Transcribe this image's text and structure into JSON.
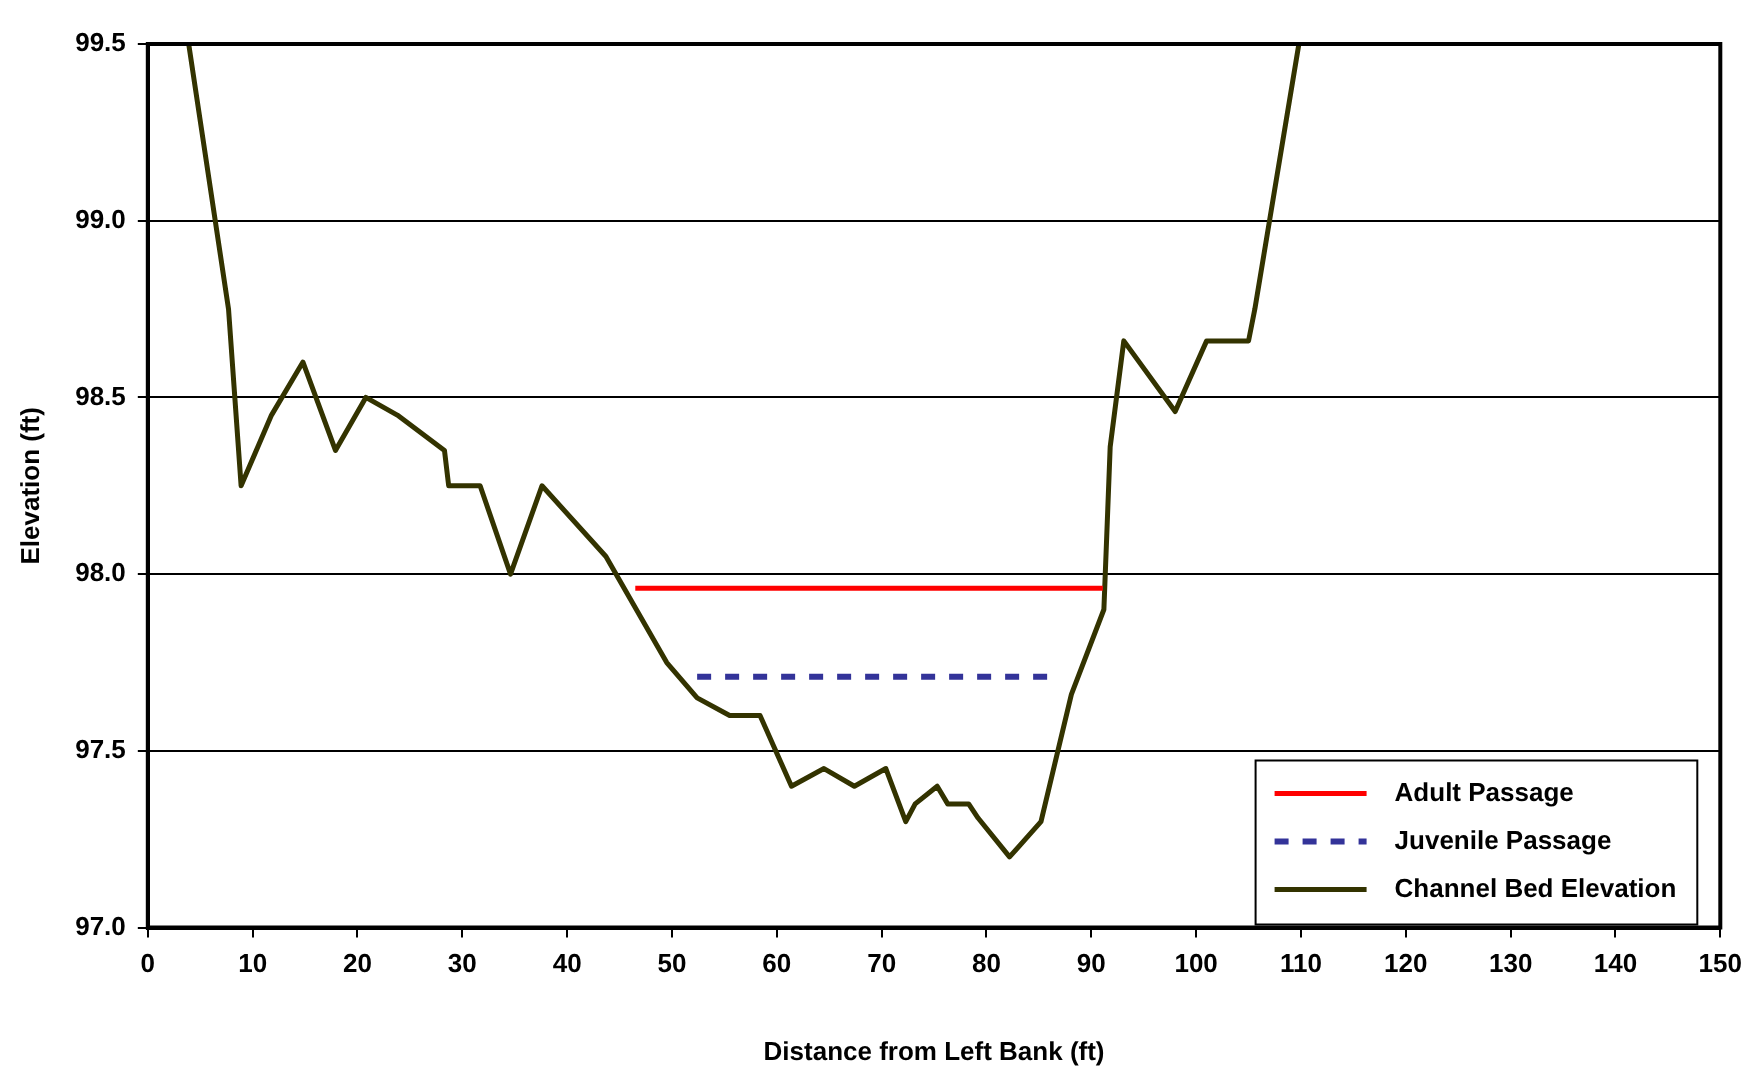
{
  "chart_data": {
    "type": "line",
    "xlabel": "Distance from Left Bank (ft)",
    "ylabel": "Elevation (ft)",
    "xlim": [
      0,
      150
    ],
    "xticks": [
      0,
      10,
      20,
      30,
      40,
      50,
      60,
      70,
      80,
      90,
      100,
      110,
      120,
      130,
      140,
      150
    ],
    "ylim": [
      97.0,
      99.5
    ],
    "yticks": [
      {
        "value": 97.0,
        "label": "97.0"
      },
      {
        "value": 97.5,
        "label": "97.5"
      },
      {
        "value": 98.0,
        "label": "98.0"
      },
      {
        "value": 98.5,
        "label": "98.5"
      },
      {
        "value": 99.0,
        "label": "99.0"
      },
      {
        "value": 99.5,
        "label": "99.5"
      }
    ],
    "grid": "y",
    "legend": "bottom right",
    "marker": "none",
    "series": [
      {
        "name": "Adult Passage",
        "color": "#ff0000",
        "line_style": "solid",
        "x": [
          46.5,
          91.1
        ],
        "values": [
          97.96,
          97.96
        ]
      },
      {
        "name": "Juvenile Passage",
        "color": "#333399",
        "line_style": "dashed",
        "x": [
          52.4,
          86.4
        ],
        "values": [
          97.71,
          97.71
        ]
      },
      {
        "name": "Channel Bed Elevation",
        "color": "#333300",
        "line_style": "solid",
        "x": [
          3.9,
          7.7,
          8.9,
          11.8,
          14.8,
          17.9,
          20.8,
          23.8,
          28.3,
          28.7,
          31.7,
          34.6,
          37.6,
          43.7,
          49.5,
          52.4,
          55.5,
          58.4,
          61.4,
          64.5,
          67.4,
          70.4,
          72.3,
          73.2,
          75.3,
          76.3,
          78.3,
          79.2,
          82.2,
          85.2,
          88.1,
          91.2,
          91.8,
          93.1,
          98.0,
          101.0,
          105.0,
          105.6,
          109.8
        ],
        "values": [
          99.5,
          98.75,
          98.25,
          98.45,
          98.6,
          98.35,
          98.5,
          98.45,
          98.35,
          98.25,
          98.25,
          98.0,
          98.25,
          98.05,
          97.75,
          97.65,
          97.6,
          97.6,
          97.4,
          97.45,
          97.4,
          97.45,
          97.3,
          97.35,
          97.4,
          97.35,
          97.35,
          97.31,
          97.2,
          97.3,
          97.66,
          97.9,
          98.36,
          98.66,
          98.46,
          98.66,
          98.66,
          98.75,
          99.5
        ]
      }
    ]
  }
}
